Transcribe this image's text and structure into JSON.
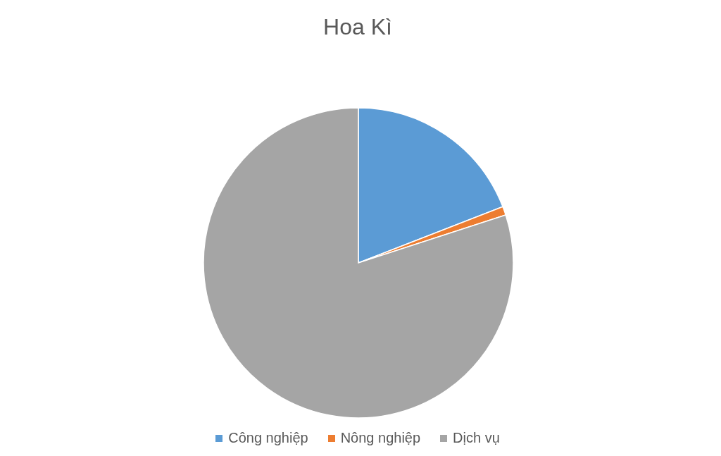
{
  "chart_data": {
    "type": "pie",
    "title": "Hoa Kì",
    "categories": [
      "Công nghiệp",
      "Nông nghiệp",
      "Dịch vụ"
    ],
    "values": [
      19.1,
      0.9,
      80
    ],
    "colors": [
      "#5b9bd5",
      "#ed7d31",
      "#a5a5a5"
    ],
    "legend": "bottom"
  }
}
